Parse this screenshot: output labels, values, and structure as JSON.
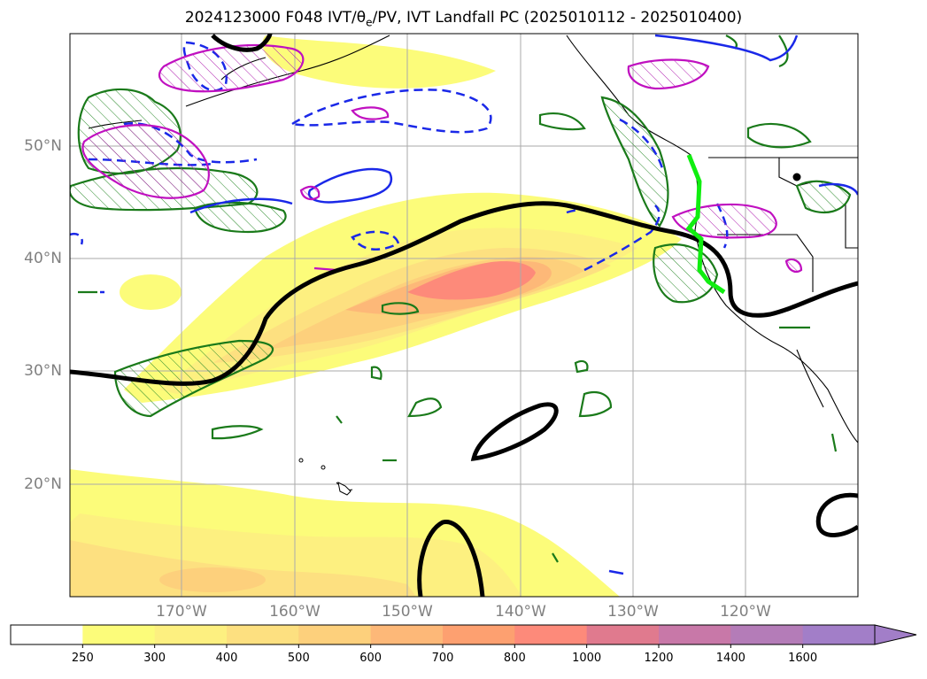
{
  "title": "2024123000 F048 IVT/θe/PV, IVT Landfall PC (2025010112 - 2025010400)",
  "lat_labels": [
    "50°N",
    "40°N",
    "30°N",
    "20°N"
  ],
  "lon_labels": [
    "170°W",
    "160°W",
    "150°W",
    "140°W",
    "130°W",
    "120°W"
  ],
  "colorbar": {
    "labels": [
      "250",
      "300",
      "400",
      "500",
      "600",
      "700",
      "800",
      "1000",
      "1200",
      "1400",
      "1600"
    ],
    "colors": [
      "#ffffff",
      "#fcfc7a",
      "#fdf080",
      "#fde080",
      "#fdd07c",
      "#fdb878",
      "#fda070",
      "#fd8a7a",
      "#e07a8e",
      "#c878a8",
      "#b47cb8",
      "#a27ec8"
    ]
  },
  "chart_data": {
    "type": "heatmap",
    "title": "2024123000 F048 IVT/θe/PV, IVT Landfall PC (2025010112 - 2025010400)",
    "lat_ticks": [
      50,
      40,
      30,
      20
    ],
    "lon_ticks": [
      -170,
      -160,
      -150,
      -140,
      -130,
      -120
    ],
    "extent_lon": [
      -180,
      -110
    ],
    "extent_lat": [
      10,
      60
    ],
    "ivt_levels": [
      250,
      300,
      400,
      500,
      600,
      700,
      800,
      1000,
      1200,
      1400,
      1600
    ],
    "ivt_max_location": {
      "lon": -141,
      "lat": 38.5,
      "approx_value": 800
    },
    "colormap_extend": "max"
  }
}
